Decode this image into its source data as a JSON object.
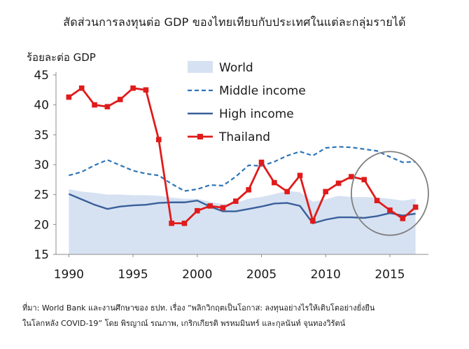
{
  "title": "สัดส่วนการลงทุนต่อ GDP ของไทยเทียบกับประเทศในแต่ละกลุ่มรายได้",
  "source_line1": "ที่มา: World Bank และงานศึกษาของ ธปท. เรื่อง “พลิกวิกฤตเป็นโอกาส: ลงทุนอย่างไรให้เติบโตอย่างยั่งยืน",
  "source_line2": "ในโลกหลัง COVID-19” โดย พิรญาณ์ รณภาพ, เกริกเกียรติ พรหมมินทร์ และกุลนันท์ จุนทองวิรัตน์",
  "colors": {
    "world": "#d6e2f2",
    "middle_income": "#2e75b6",
    "high_income": "#3a5f9a",
    "thailand": "#e01b1b",
    "highlight_circle": "#7f7f7f"
  },
  "chart_data": {
    "type": "line",
    "ylabel": "ร้อยละต่อ GDP",
    "xlabel": "",
    "ylim": [
      15,
      45
    ],
    "xlim": [
      1989,
      2018
    ],
    "y_ticks": [
      15,
      20,
      25,
      30,
      35,
      40,
      45
    ],
    "x_ticks": [
      1990,
      1995,
      2000,
      2005,
      2010,
      2015
    ],
    "grid": false,
    "legend_position": "top-right",
    "x": [
      1990,
      1991,
      1992,
      1993,
      1994,
      1995,
      1996,
      1997,
      1998,
      1999,
      2000,
      2001,
      2002,
      2003,
      2004,
      2005,
      2006,
      2007,
      2008,
      2009,
      2010,
      2011,
      2012,
      2013,
      2014,
      2015,
      2016,
      2017
    ],
    "series": [
      {
        "name": "World",
        "style": "area",
        "values": [
          25.9,
          25.5,
          25.3,
          25.0,
          25.0,
          24.9,
          24.9,
          24.8,
          24.5,
          24.3,
          24.3,
          23.8,
          23.4,
          23.6,
          24.3,
          24.6,
          25.1,
          25.6,
          25.4,
          23.8,
          24.2,
          24.8,
          24.6,
          24.6,
          24.5,
          24.3,
          24.0,
          24.3
        ]
      },
      {
        "name": "Middle income",
        "style": "dashed",
        "values": [
          28.2,
          28.8,
          29.9,
          30.8,
          29.9,
          29.0,
          28.5,
          28.2,
          26.8,
          25.6,
          25.9,
          26.6,
          26.5,
          28.0,
          29.9,
          29.8,
          30.5,
          31.5,
          32.2,
          31.5,
          32.8,
          33.0,
          32.9,
          32.6,
          32.3,
          31.3,
          30.4,
          30.5
        ]
      },
      {
        "name": "High income",
        "style": "solid",
        "values": [
          25.1,
          24.2,
          23.3,
          22.6,
          23.0,
          23.2,
          23.3,
          23.6,
          23.7,
          23.7,
          24.0,
          23.0,
          22.2,
          22.2,
          22.6,
          23.0,
          23.5,
          23.6,
          23.1,
          20.2,
          20.8,
          21.2,
          21.2,
          21.1,
          21.4,
          21.9,
          21.5,
          21.8
        ]
      },
      {
        "name": "Thailand",
        "style": "solid-markers",
        "values": [
          41.3,
          42.8,
          40.0,
          39.7,
          40.9,
          42.8,
          42.5,
          34.2,
          20.2,
          20.2,
          22.3,
          23.1,
          22.8,
          23.9,
          25.8,
          30.4,
          27.0,
          25.5,
          28.2,
          20.6,
          25.5,
          26.9,
          28.0,
          27.5,
          24.0,
          22.4,
          21.0,
          22.9
        ]
      }
    ],
    "annotations": [
      {
        "type": "ellipse",
        "x_center": 2015,
        "y_center": 25.2,
        "x_radius": 3.0,
        "y_radius": 7.0
      }
    ]
  }
}
